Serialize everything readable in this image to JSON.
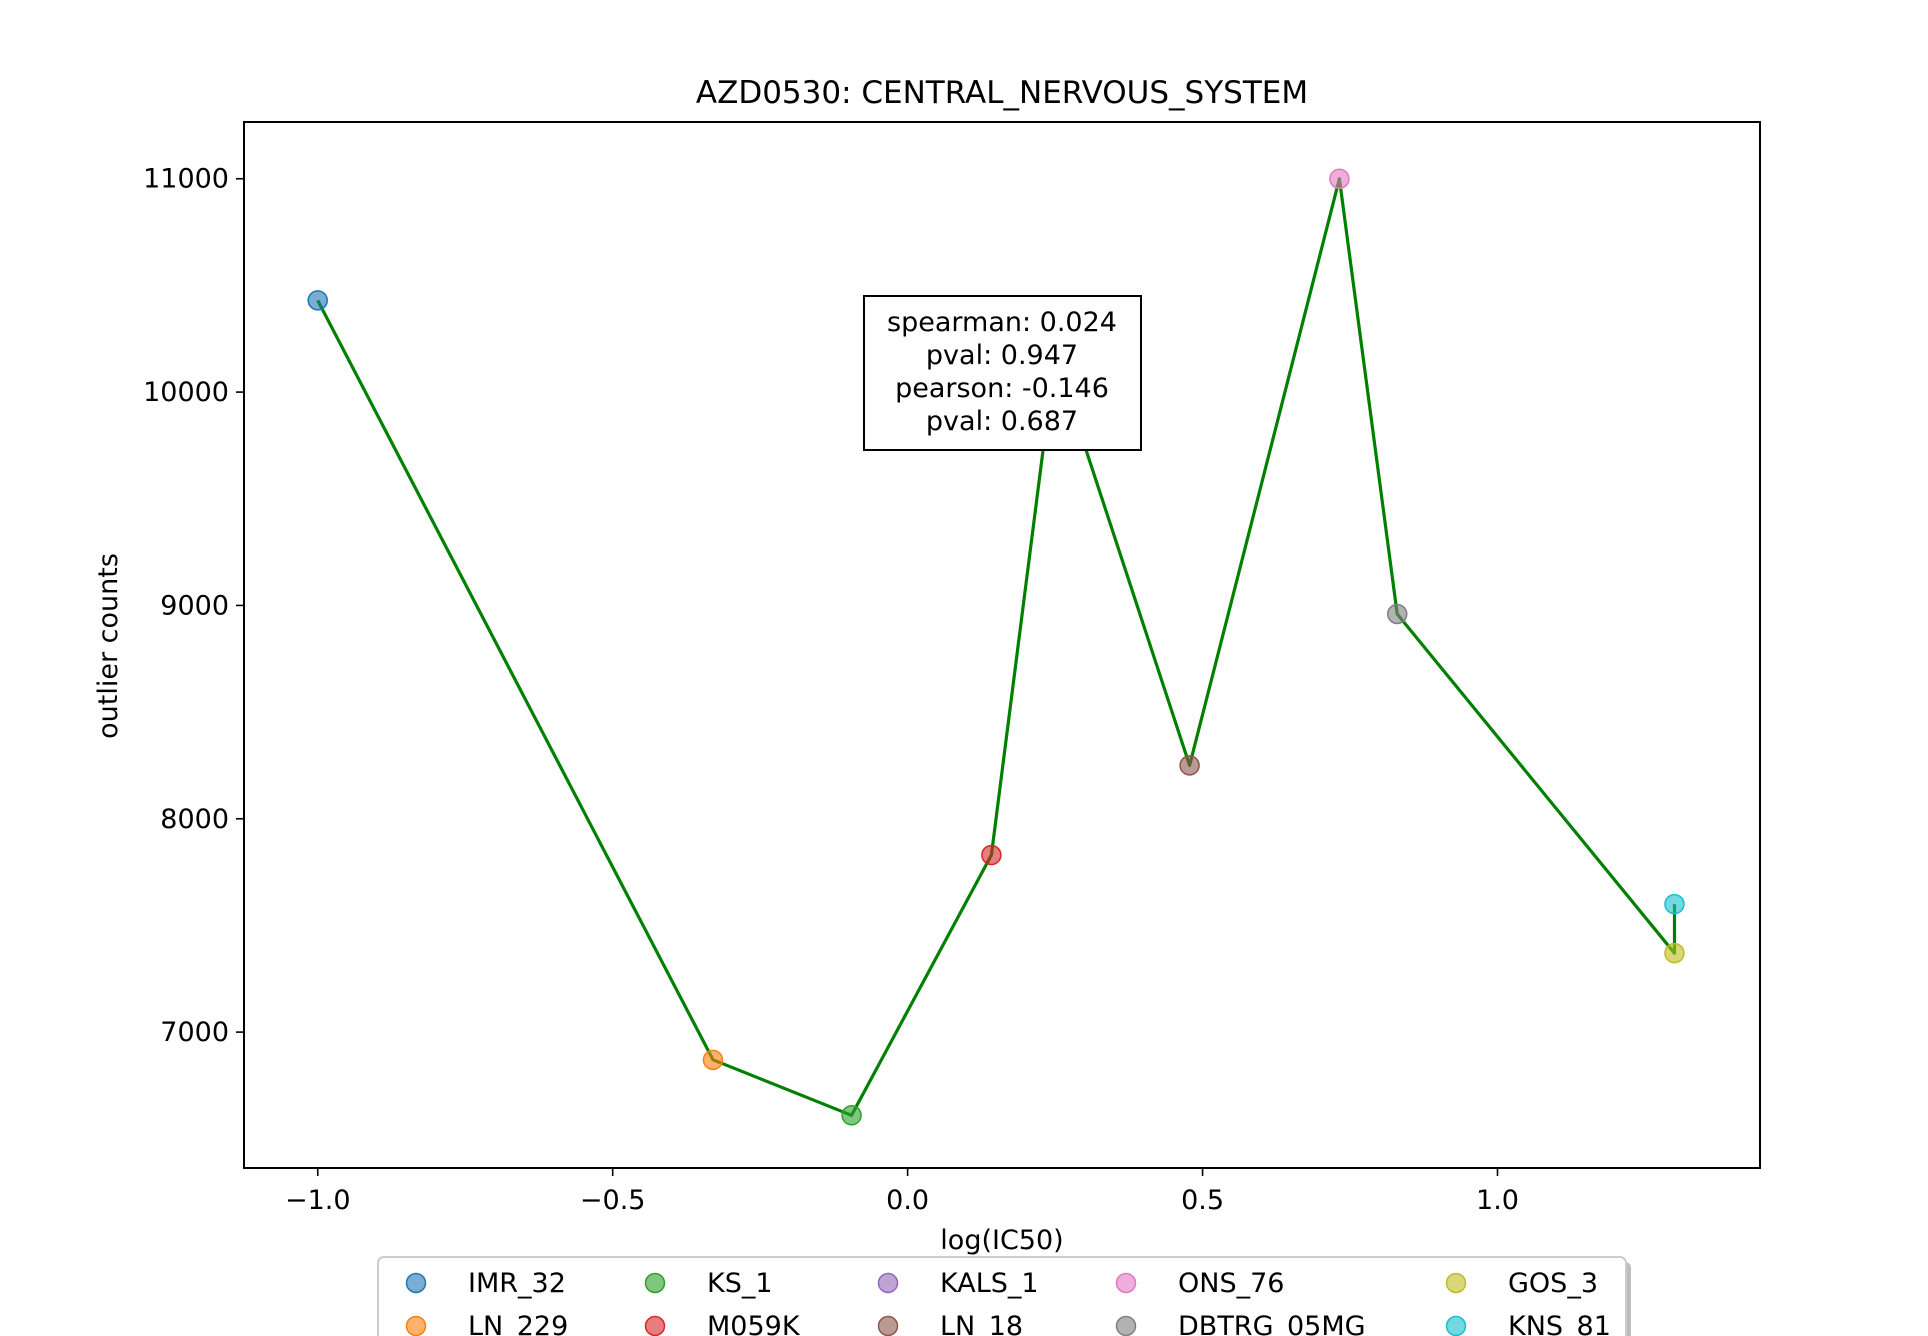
{
  "chart_data": {
    "type": "line",
    "title": "AZD0530: CENTRAL_NERVOUS_SYSTEM",
    "xlabel": "log(IC50)",
    "ylabel": "outlier counts",
    "xlim": [
      -1.125,
      1.445
    ],
    "ylim": [
      6363,
      11266
    ],
    "xticks": [
      -1.0,
      -0.5,
      0.0,
      0.5,
      1.0
    ],
    "xtick_labels": [
      "−1.0",
      "−0.5",
      "0.0",
      "0.5",
      "1.0"
    ],
    "yticks": [
      7000,
      8000,
      9000,
      10000,
      11000
    ],
    "ytick_labels": [
      "7000",
      "8000",
      "9000",
      "10000",
      "11000"
    ],
    "grid": false,
    "line_color": "#008000",
    "points": [
      {
        "name": "IMR_32",
        "x": -1.0,
        "y": 10430,
        "color": "#1f77b4"
      },
      {
        "name": "LN_229",
        "x": -0.33,
        "y": 6870,
        "color": "#ff7f0e"
      },
      {
        "name": "KS_1",
        "x": -0.095,
        "y": 6610,
        "color": "#2ca02c"
      },
      {
        "name": "M059K",
        "x": 0.142,
        "y": 7830,
        "color": "#d62728"
      },
      {
        "name": "KALS_1",
        "x": 0.25,
        "y": 10170,
        "color": "#9467bd"
      },
      {
        "name": "LN_18",
        "x": 0.478,
        "y": 8250,
        "color": "#8c564b"
      },
      {
        "name": "ONS_76",
        "x": 0.732,
        "y": 11000,
        "color": "#e377c2"
      },
      {
        "name": "DBTRG_05MG",
        "x": 0.83,
        "y": 8960,
        "color": "#7f7f7f"
      },
      {
        "name": "GOS_3",
        "x": 1.3,
        "y": 7370,
        "color": "#bcbd22"
      },
      {
        "name": "KNS_81",
        "x": 1.3,
        "y": 7600,
        "color": "#17becf"
      }
    ],
    "annotation": {
      "lines": [
        "spearman: 0.024",
        "pval: 0.947",
        "pearson: -0.146",
        "pval: 0.687"
      ]
    },
    "legend": {
      "placement": "bottom-center",
      "columns": 5,
      "entries": [
        "IMR_32",
        "LN_229",
        "KS_1",
        "M059K",
        "KALS_1",
        "LN_18",
        "ONS_76",
        "DBTRG_05MG",
        "GOS_3",
        "KNS_81"
      ]
    }
  }
}
